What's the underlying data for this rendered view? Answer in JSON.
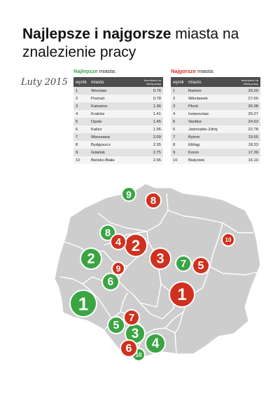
{
  "title": {
    "bold": "Najlepsze i najgorsze",
    "rest": " miasta na znalezienie pracy"
  },
  "date_label": "Luty 2015",
  "best": {
    "heading_highlight": "Najlepsze",
    "heading_rest": " miasta:",
    "columns": [
      "wynik",
      "miasto",
      "bezrobotni na ofertę pracy"
    ],
    "rows": [
      [
        "1",
        "Wrocław",
        "0.76"
      ],
      [
        "2",
        "Poznań",
        "0.78"
      ],
      [
        "3",
        "Katowice",
        "1.36"
      ],
      [
        "4",
        "Kraków",
        "1.41"
      ],
      [
        "5",
        "Opole",
        "1.45"
      ],
      [
        "6",
        "Kalisz",
        "1.96"
      ],
      [
        "7",
        "Warszawa",
        "2.09"
      ],
      [
        "8",
        "Bydgoszcz",
        "2.35"
      ],
      [
        "9",
        "Gdańsk",
        "2.75"
      ],
      [
        "10",
        "Bielsko-Biała",
        "2.96"
      ]
    ],
    "color": "#3aa542"
  },
  "worst": {
    "heading_highlight": "Najgorsze",
    "heading_rest": " miasta:",
    "columns": [
      "wynik",
      "miasto",
      "bezrobotni na ofertę pracy"
    ],
    "rows": [
      [
        "1",
        "Radom",
        "29.20"
      ],
      [
        "2",
        "Włocławek",
        "27.60"
      ],
      [
        "3",
        "Płock",
        "26.98"
      ],
      [
        "4",
        "Inowrocław",
        "26.27"
      ],
      [
        "5",
        "Siedlce",
        "24.63"
      ],
      [
        "6",
        "Jastrzębie-Zdrój",
        "22.78"
      ],
      [
        "7",
        "Bytom",
        "19.55"
      ],
      [
        "8",
        "Elbląg",
        "18.33"
      ],
      [
        "9",
        "Konin",
        "17.39"
      ],
      [
        "10",
        "Białystok",
        "16.10"
      ]
    ],
    "color": "#d0311f"
  },
  "map": {
    "markers": [
      {
        "label": "1",
        "kind": "best"
      },
      {
        "label": "2",
        "kind": "best"
      },
      {
        "label": "3",
        "kind": "best"
      },
      {
        "label": "4",
        "kind": "best"
      },
      {
        "label": "5",
        "kind": "best"
      },
      {
        "label": "6",
        "kind": "best"
      },
      {
        "label": "7",
        "kind": "best"
      },
      {
        "label": "8",
        "kind": "best"
      },
      {
        "label": "9",
        "kind": "best"
      },
      {
        "label": "10",
        "kind": "best"
      },
      {
        "label": "1",
        "kind": "worst"
      },
      {
        "label": "2",
        "kind": "worst"
      },
      {
        "label": "3",
        "kind": "worst"
      },
      {
        "label": "4",
        "kind": "worst"
      },
      {
        "label": "5",
        "kind": "worst"
      },
      {
        "label": "6",
        "kind": "worst"
      },
      {
        "label": "7",
        "kind": "worst"
      },
      {
        "label": "8",
        "kind": "worst"
      },
      {
        "label": "9",
        "kind": "worst"
      },
      {
        "label": "10",
        "kind": "worst"
      }
    ],
    "land_color": "#cdcdcd",
    "border_color": "#ffffff"
  }
}
